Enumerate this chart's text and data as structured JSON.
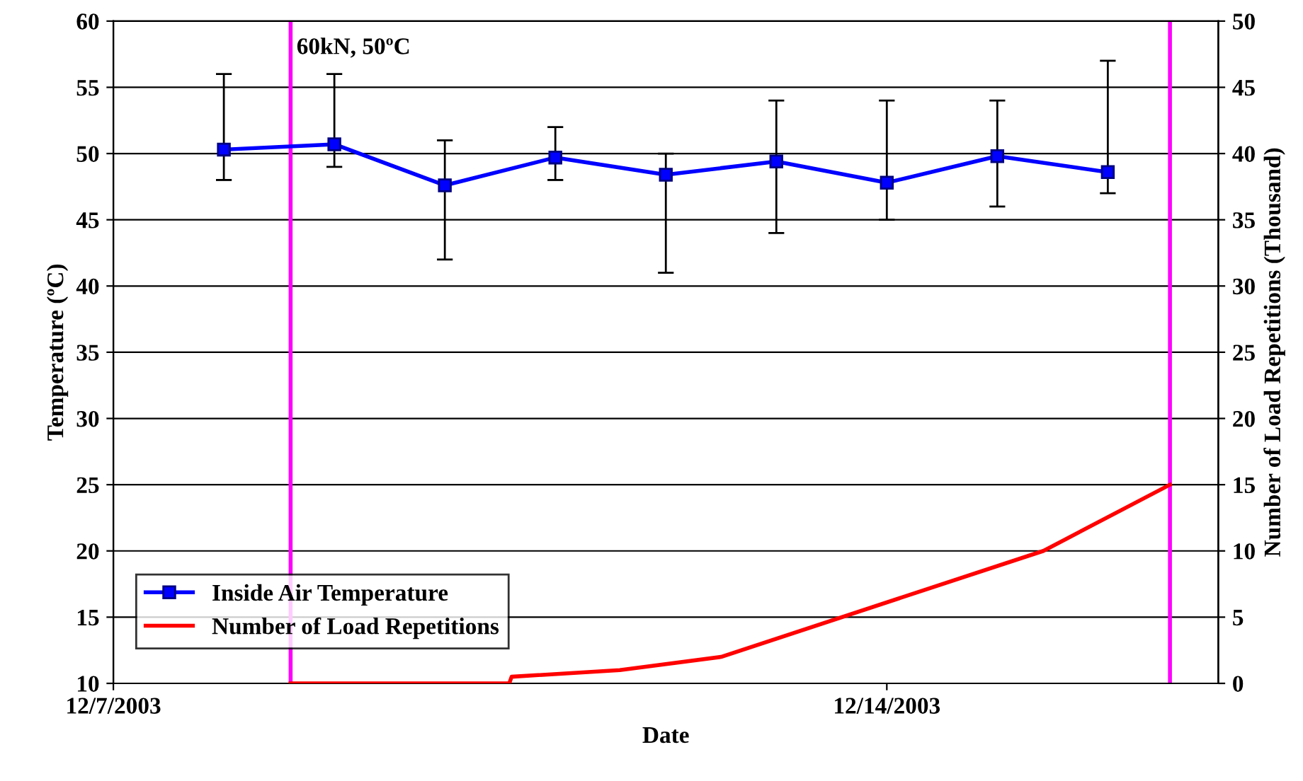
{
  "chart_data": {
    "type": "line",
    "xlabel": "Date",
    "ylabel": "Temperature (ºC)",
    "y2label": "Number of Load Repetitions (Thousand)",
    "xlim": [
      "2003-12-07",
      "2003-12-17"
    ],
    "xticks": [
      {
        "value": "2003-12-07",
        "label": "12/7/2003"
      },
      {
        "value": "2003-12-14",
        "label": "12/14/2003"
      }
    ],
    "ylim": [
      10,
      60
    ],
    "yticks": [
      10,
      15,
      20,
      25,
      30,
      35,
      40,
      45,
      50,
      55,
      60
    ],
    "y2lim": [
      0,
      50
    ],
    "y2ticks": [
      0,
      5,
      10,
      15,
      20,
      25,
      30,
      35,
      40,
      45,
      50
    ],
    "grid": "y",
    "legend": "bottom left",
    "series": [
      {
        "name": "Inside Air Temperature",
        "color": "#0000ff",
        "marker": "square",
        "x": [
          "2003-12-08",
          "2003-12-09",
          "2003-12-10",
          "2003-12-11",
          "2003-12-12",
          "2003-12-13",
          "2003-12-14",
          "2003-12-15",
          "2003-12-16"
        ],
        "values": [
          50.3,
          50.7,
          47.6,
          49.7,
          48.4,
          49.4,
          47.8,
          49.8,
          48.6
        ],
        "errors": [
          [
            48,
            56
          ],
          [
            49,
            56
          ],
          [
            42,
            51
          ],
          [
            48,
            52
          ],
          [
            41,
            50
          ],
          [
            44,
            54
          ],
          [
            45,
            54
          ],
          [
            46,
            54
          ],
          [
            47,
            57
          ]
        ]
      },
      {
        "name": "Number of Load Repetitions",
        "color": "#ff0000",
        "axis": "y2",
        "marker": "none",
        "x": [
          "2003-12-08T14:30",
          "2003-12-10T14:00",
          "2003-12-10T14:30",
          "2003-12-11T14:00",
          "2003-12-12T12:00",
          "2003-12-15T10:00",
          "2003-12-16T13:30"
        ],
        "values": [
          0,
          0,
          0.5,
          1,
          2,
          10,
          15
        ]
      }
    ],
    "ref_lines": [
      {
        "axis": "x",
        "value": "2003-12-08T14:30",
        "label": "60kN, 50ºC",
        "color": "#ff00ff"
      },
      {
        "axis": "x",
        "value": "2003-12-16T13:30",
        "color": "#ff00ff"
      }
    ]
  }
}
